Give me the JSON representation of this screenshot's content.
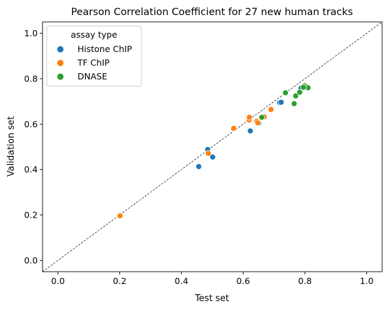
{
  "chart_data": {
    "type": "scatter",
    "title": "Pearson Correlation Coefficient for 27 new human tracks",
    "xlabel": "Test set",
    "ylabel": "Validation set",
    "xlim": [
      -0.05,
      1.05
    ],
    "ylim": [
      -0.05,
      1.05
    ],
    "x_ticks": [
      "0.0",
      "0.2",
      "0.4",
      "0.6",
      "0.8",
      "1.0"
    ],
    "y_ticks": [
      "0.0",
      "0.2",
      "0.4",
      "0.6",
      "0.8",
      "1.0"
    ],
    "grid": false,
    "reference_line": "y = x (dashed)",
    "legend": {
      "title": "assay type",
      "placement": "upper-left"
    },
    "series": [
      {
        "name": "Histone ChIP",
        "color": "#1f77b4",
        "points": [
          [
            0.456,
            0.413
          ],
          [
            0.485,
            0.488
          ],
          [
            0.501,
            0.455
          ],
          [
            0.623,
            0.57
          ],
          [
            0.65,
            0.604
          ],
          [
            0.718,
            0.695
          ],
          [
            0.723,
            0.696
          ],
          [
            0.787,
            0.758
          ]
        ]
      },
      {
        "name": "TF ChIP",
        "color": "#ff7f0e",
        "points": [
          [
            0.201,
            0.196
          ],
          [
            0.487,
            0.471
          ],
          [
            0.569,
            0.581
          ],
          [
            0.619,
            0.618
          ],
          [
            0.62,
            0.63
          ],
          [
            0.644,
            0.613
          ],
          [
            0.647,
            0.606
          ],
          [
            0.668,
            0.632
          ],
          [
            0.69,
            0.664
          ]
        ]
      },
      {
        "name": "DNASE",
        "color": "#2ca02c",
        "points": [
          [
            0.66,
            0.63
          ],
          [
            0.737,
            0.738
          ],
          [
            0.765,
            0.69
          ],
          [
            0.77,
            0.724
          ],
          [
            0.783,
            0.74
          ],
          [
            0.797,
            0.768
          ],
          [
            0.8,
            0.77
          ],
          [
            0.803,
            0.765
          ],
          [
            0.81,
            0.76
          ],
          [
            0.795,
            0.762
          ]
        ]
      }
    ]
  }
}
